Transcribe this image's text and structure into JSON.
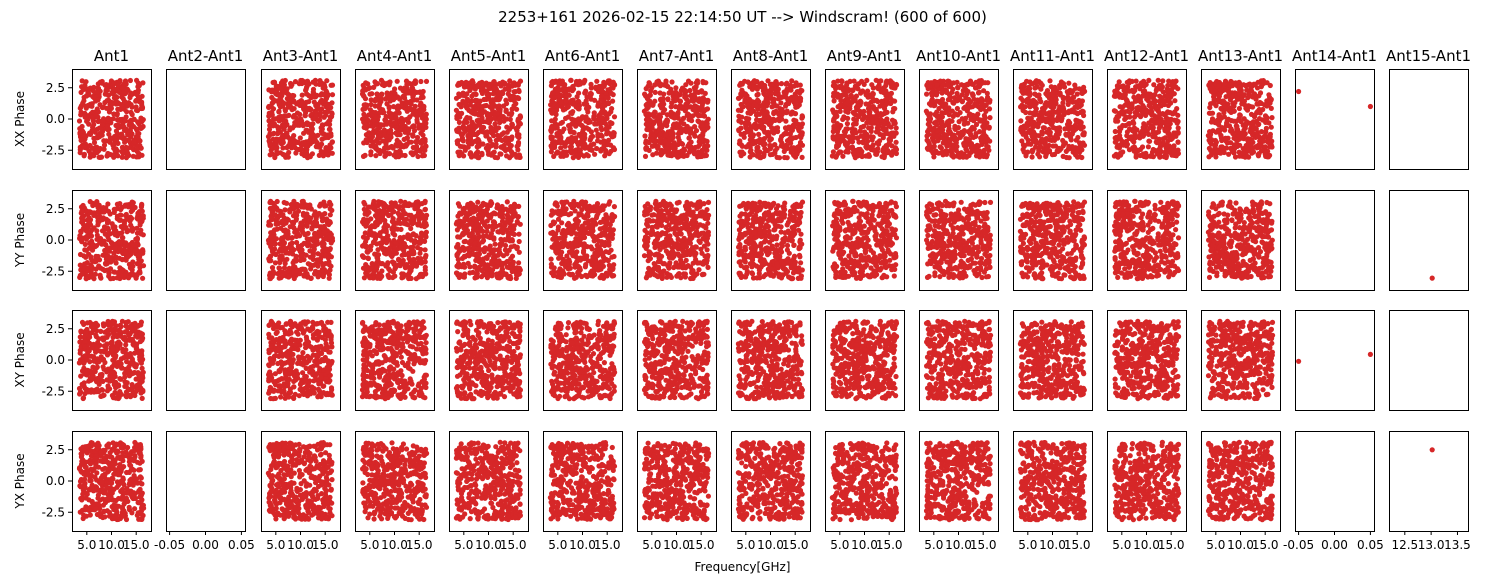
{
  "figure": {
    "title": "2253+161 2026-02-15 22:14:50 UT --> Windscram! (600 of 600)",
    "xlabel": "Frequency[GHz]",
    "marker_color": "#d62728"
  },
  "chart_data": {
    "type": "scatter",
    "grid": false,
    "ylim": [
      -4,
      4
    ],
    "y_ticks": [
      -2.5,
      0.0,
      2.5
    ],
    "y_tick_labels": [
      "-2.5",
      "0.0",
      "2.5"
    ],
    "row_labels": [
      "XX Phase",
      "YY Phase",
      "XY Phase",
      "YX Phase"
    ],
    "panels": [
      {
        "title": "Ant1",
        "x_tick_labels": [
          "5.0",
          "10.0",
          "15.0"
        ],
        "xlim": [
          2,
          18
        ],
        "dense": true
      },
      {
        "title": "Ant2-Ant1",
        "x_tick_labels": [
          "-0.05",
          "0.00",
          "0.05"
        ],
        "xlim": [
          -0.055,
          0.055
        ],
        "dense": false
      },
      {
        "title": "Ant3-Ant1",
        "x_tick_labels": [
          "5.0",
          "10.0",
          "15.0"
        ],
        "xlim": [
          2,
          18
        ],
        "dense": true
      },
      {
        "title": "Ant4-Ant1",
        "x_tick_labels": [
          "5.0",
          "10.0",
          "15.0"
        ],
        "xlim": [
          2,
          18
        ],
        "dense": true
      },
      {
        "title": "Ant5-Ant1",
        "x_tick_labels": [
          "5.0",
          "10.0",
          "15.0"
        ],
        "xlim": [
          2,
          18
        ],
        "dense": true
      },
      {
        "title": "Ant6-Ant1",
        "x_tick_labels": [
          "5.0",
          "10.0",
          "15.0"
        ],
        "xlim": [
          2,
          18
        ],
        "dense": true
      },
      {
        "title": "Ant7-Ant1",
        "x_tick_labels": [
          "5.0",
          "10.0",
          "15.0"
        ],
        "xlim": [
          2,
          18
        ],
        "dense": true
      },
      {
        "title": "Ant8-Ant1",
        "x_tick_labels": [
          "5.0",
          "10.0",
          "15.0"
        ],
        "xlim": [
          2,
          18
        ],
        "dense": true
      },
      {
        "title": "Ant9-Ant1",
        "x_tick_labels": [
          "5.0",
          "10.0",
          "15.0"
        ],
        "xlim": [
          2,
          18
        ],
        "dense": true
      },
      {
        "title": "Ant10-Ant1",
        "x_tick_labels": [
          "5.0",
          "10.0",
          "15.0"
        ],
        "xlim": [
          2,
          18
        ],
        "dense": true
      },
      {
        "title": "Ant11-Ant1",
        "x_tick_labels": [
          "5.0",
          "10.0",
          "15.0"
        ],
        "xlim": [
          2,
          18
        ],
        "dense": true
      },
      {
        "title": "Ant12-Ant1",
        "x_tick_labels": [
          "5.0",
          "10.0",
          "15.0"
        ],
        "xlim": [
          2,
          18
        ],
        "dense": true
      },
      {
        "title": "Ant13-Ant1",
        "x_tick_labels": [
          "5.0",
          "10.0",
          "15.0"
        ],
        "xlim": [
          2,
          18
        ],
        "dense": true
      },
      {
        "title": "Ant14-Ant1",
        "x_tick_labels": [
          "-0.05",
          "0.00",
          "0.05"
        ],
        "xlim": [
          -0.055,
          0.055
        ],
        "dense": false,
        "points": [
          {
            "row": 0,
            "x": -0.05,
            "y": 2.2
          },
          {
            "row": 0,
            "x": 0.05,
            "y": 1.0
          },
          {
            "row": 2,
            "x": -0.05,
            "y": -0.1
          },
          {
            "row": 2,
            "x": 0.05,
            "y": 0.45
          }
        ]
      },
      {
        "title": "Ant15-Ant1",
        "x_tick_labels": [
          "12.5",
          "13.0",
          "13.5"
        ],
        "xlim": [
          12.2,
          13.7
        ],
        "dense": false,
        "points": [
          {
            "row": 1,
            "x": 13.02,
            "y": -3.05
          },
          {
            "row": 3,
            "x": 13.02,
            "y": 2.5
          }
        ]
      }
    ]
  }
}
